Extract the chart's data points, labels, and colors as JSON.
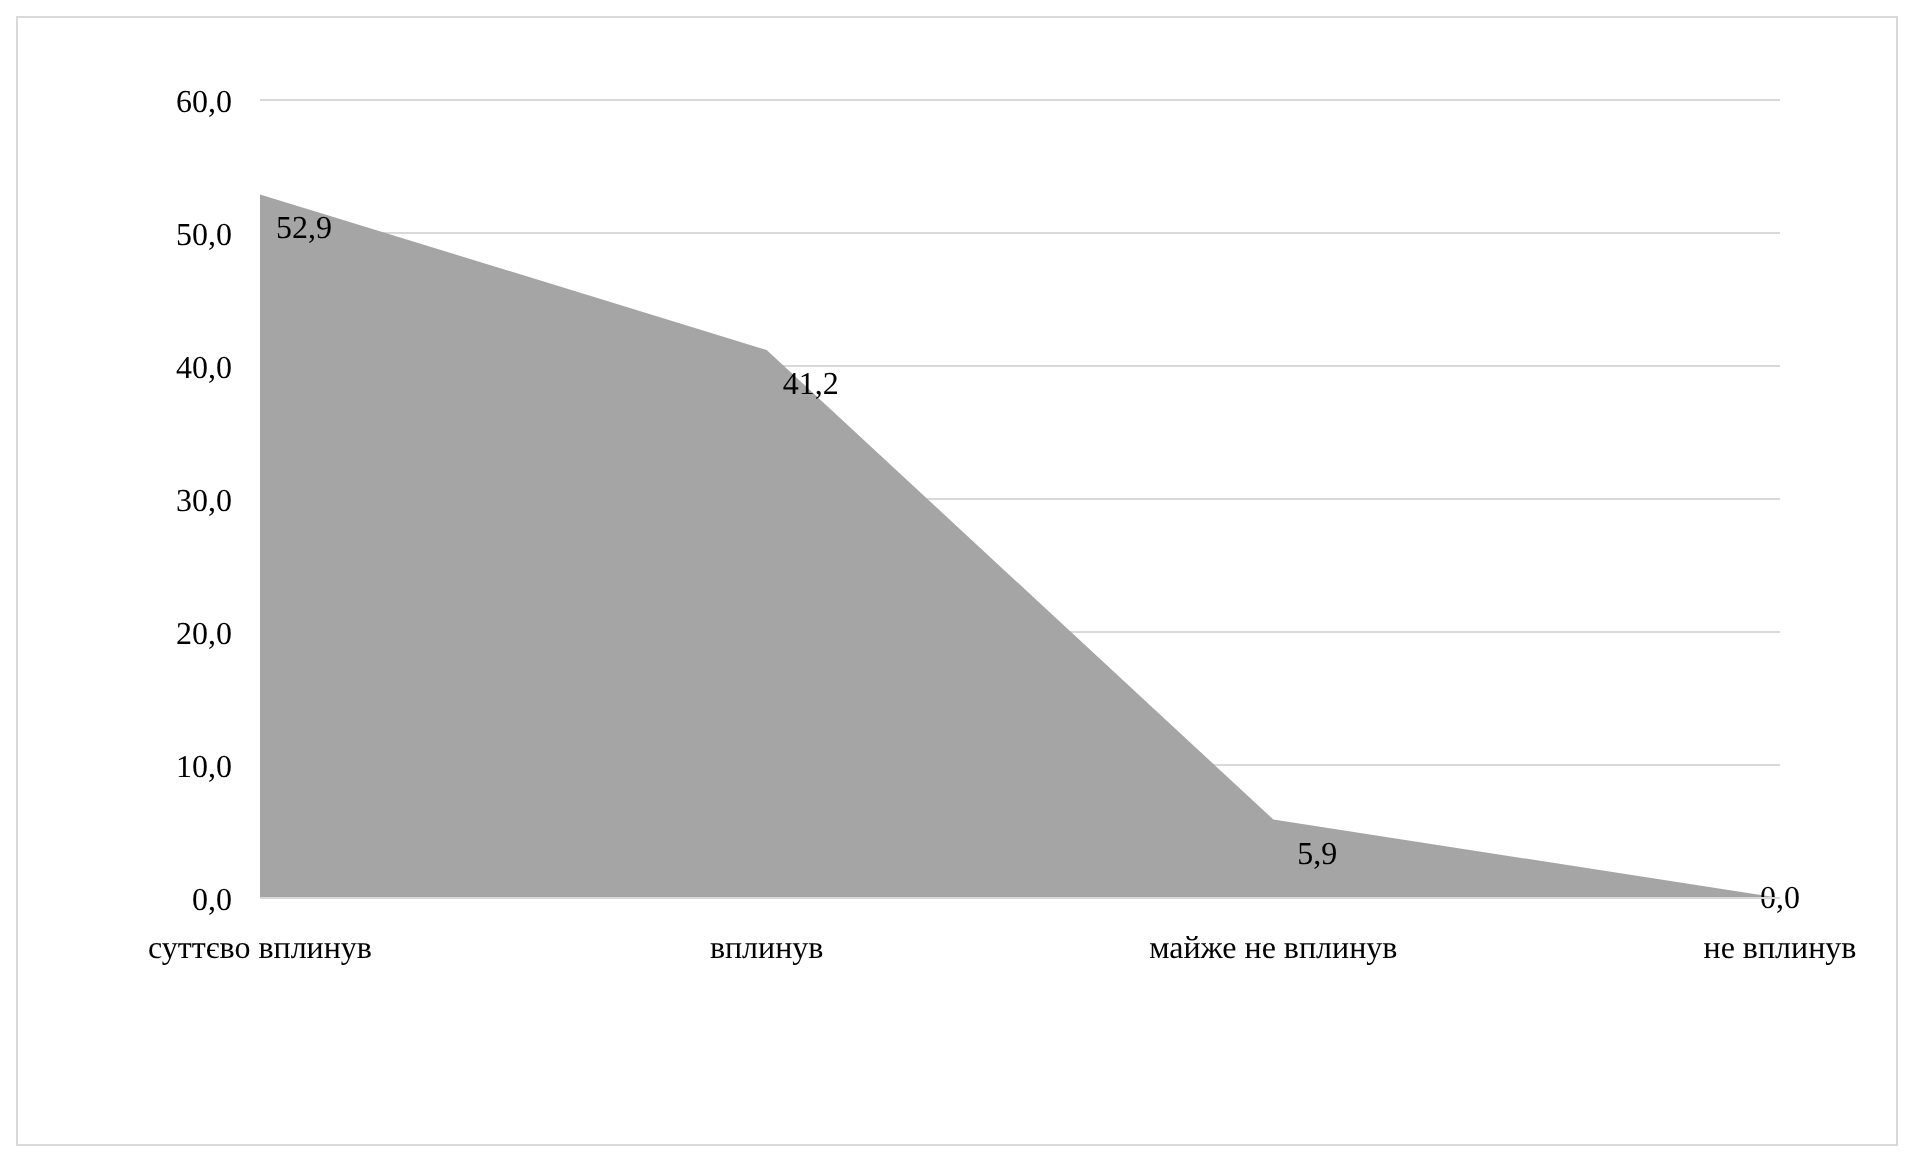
{
  "chart_data": {
    "type": "area",
    "categories": [
      "суттєво вплинув",
      "вплинув",
      "майже не вплинув",
      "не вплинув"
    ],
    "series": [
      {
        "color": "#a5a5a5",
        "values": [
          52.9,
          41.2,
          5.9,
          0.0
        ],
        "value_labels": [
          "52,9",
          "41,2",
          "5,9",
          "0,0"
        ]
      }
    ],
    "ylim": [
      0,
      60
    ],
    "yticks": [
      {
        "value": 0,
        "label": "0,0"
      },
      {
        "value": 10,
        "label": "10,0"
      },
      {
        "value": 20,
        "label": "20,0"
      },
      {
        "value": 30,
        "label": "30,0"
      },
      {
        "value": 40,
        "label": "40,0"
      },
      {
        "value": 50,
        "label": "50,0"
      },
      {
        "value": 60,
        "label": "60,0"
      }
    ],
    "grid": "y"
  }
}
